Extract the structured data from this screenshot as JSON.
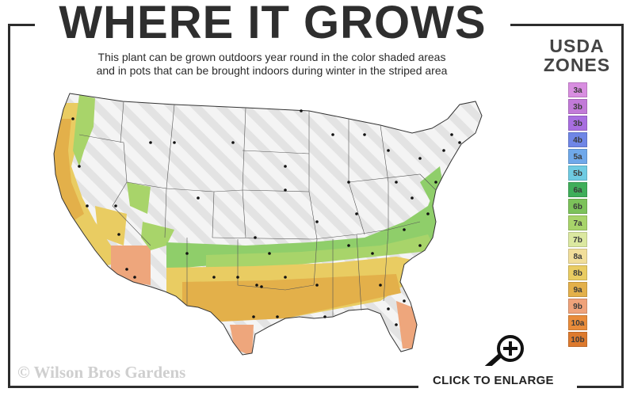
{
  "header": {
    "title": "WHERE IT GROWS",
    "subtitle_line1": "This plant can be grown outdoors year round in the color shaded areas",
    "subtitle_line2": "and in pots that can be brought indoors during winter in the striped area"
  },
  "legend": {
    "title_line1": "USDA",
    "title_line2": "ZONES",
    "zones": [
      {
        "label": "3a",
        "color": "#d88ee0"
      },
      {
        "label": "3b",
        "color": "#c27ad8"
      },
      {
        "label": "3b",
        "color": "#a86ee0"
      },
      {
        "label": "4b",
        "color": "#6f86e6"
      },
      {
        "label": "5a",
        "color": "#6fa8ea"
      },
      {
        "label": "5b",
        "color": "#6fcbe2"
      },
      {
        "label": "6a",
        "color": "#3fae5a"
      },
      {
        "label": "6b",
        "color": "#7cc25a"
      },
      {
        "label": "7a",
        "color": "#a8d46a"
      },
      {
        "label": "7b",
        "color": "#dbe8a0"
      },
      {
        "label": "8a",
        "color": "#f1de9a"
      },
      {
        "label": "8b",
        "color": "#e9cc62"
      },
      {
        "label": "9a",
        "color": "#e3b04a"
      },
      {
        "label": "9b",
        "color": "#efa27a"
      },
      {
        "label": "10a",
        "color": "#e98c3a"
      },
      {
        "label": "10b",
        "color": "#dd7a2e"
      }
    ]
  },
  "footer": {
    "copyright": "© Wilson Bros Gardens",
    "enlarge_label": "CLICK TO ENLARGE"
  },
  "colors": {
    "text_dark": "#2e2e2e",
    "frame": "#2d2d2d",
    "map_white": "#f2f2f2",
    "stripe": "#e6e6e6",
    "green": "#8fce6a",
    "yellow": "#e8c862",
    "salmon": "#eea67c"
  }
}
